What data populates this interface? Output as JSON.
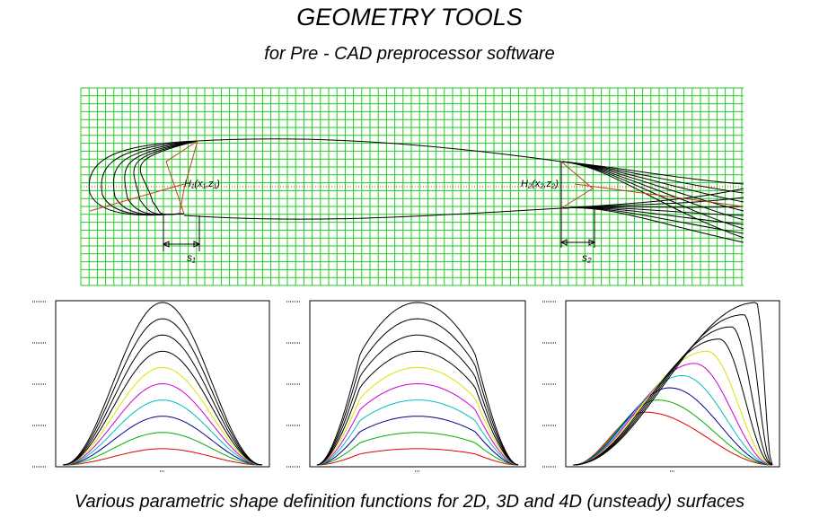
{
  "header": {
    "title": "GEOMETRY TOOLS",
    "subtitle": "for Pre - CAD preprocessor software"
  },
  "figure": {
    "labels": {
      "h1": "H₁(x₁,z₁)",
      "h2": "H₂(x₂,z₂)",
      "s1": "s₁",
      "s2": "s₂"
    }
  },
  "caption": "Various parametric shape definition functions for 2D, 3D and 4D (unsteady) surfaces"
}
